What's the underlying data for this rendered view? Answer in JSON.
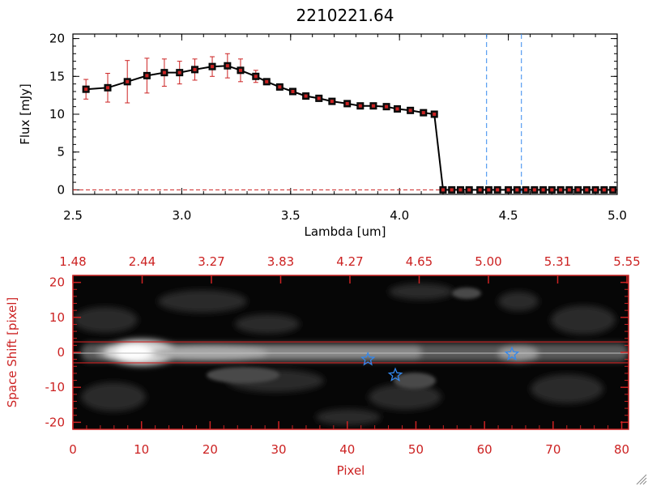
{
  "title": "2210221.64",
  "colors": {
    "axis": "#000000",
    "red": "#cc2222",
    "blue": "#3388ee",
    "background": "#ffffff"
  },
  "chart_data": [
    {
      "type": "line",
      "title": "2210221.64",
      "xlabel": "Lambda [um]",
      "ylabel": "Flux [mJy]",
      "xlim": [
        2.5,
        5.0
      ],
      "ylim": [
        -0.6,
        20.6
      ],
      "xticks": [
        "2.5",
        "3.0",
        "3.5",
        "4.0",
        "4.5",
        "5.0"
      ],
      "yticks": [
        "0",
        "5",
        "10",
        "15",
        "20"
      ],
      "marker": "square",
      "series": [
        {
          "name": "flux",
          "x": [
            2.56,
            2.66,
            2.75,
            2.84,
            2.92,
            2.99,
            3.06,
            3.14,
            3.21,
            3.27,
            3.34,
            3.39,
            3.45,
            3.51,
            3.57,
            3.63,
            3.69,
            3.76,
            3.82,
            3.88,
            3.94,
            3.99,
            4.05,
            4.11,
            4.16,
            4.2,
            4.24,
            4.28,
            4.32,
            4.37,
            4.41,
            4.45,
            4.5,
            4.54,
            4.58,
            4.62,
            4.66,
            4.7,
            4.74,
            4.78,
            4.82,
            4.86,
            4.9,
            4.94,
            4.98
          ],
          "y": [
            13.3,
            13.5,
            14.3,
            15.1,
            15.5,
            15.5,
            15.9,
            16.3,
            16.4,
            15.8,
            15.0,
            14.3,
            13.6,
            13.0,
            12.4,
            12.1,
            11.7,
            11.4,
            11.1,
            11.1,
            11.0,
            10.7,
            10.5,
            10.2,
            10.0,
            0,
            0,
            0,
            0,
            0,
            0,
            0,
            0,
            0,
            0,
            0,
            0,
            0,
            0,
            0,
            0,
            0,
            0,
            0,
            0
          ],
          "err": [
            1.3,
            1.9,
            2.8,
            2.3,
            1.8,
            1.5,
            1.4,
            1.3,
            1.6,
            1.5,
            0.8,
            0,
            0,
            0,
            0,
            0,
            0,
            0,
            0,
            0,
            0,
            0,
            0,
            0,
            0,
            0,
            0,
            0,
            0,
            0,
            0,
            0,
            0,
            0,
            0,
            0,
            0,
            0,
            0,
            0,
            0,
            0,
            0,
            0,
            0
          ]
        }
      ],
      "vlines": [
        4.4,
        4.56
      ],
      "hlines": [
        0
      ]
    },
    {
      "type": "heatmap",
      "xlabel": "Pixel",
      "ylabel": "Space Shift [pixel]",
      "xlim": [
        0,
        81
      ],
      "ylim": [
        -22,
        22
      ],
      "xticks": [
        "0",
        "10",
        "20",
        "30",
        "40",
        "50",
        "60",
        "70",
        "80"
      ],
      "yticks": [
        "-20",
        "-10",
        "0",
        "10",
        "20"
      ],
      "top_axis_ticks": [
        "1.48",
        "2.44",
        "3.27",
        "3.83",
        "4.27",
        "4.65",
        "5.00",
        "5.31",
        "5.55"
      ],
      "aperture_lines": [
        3,
        -3
      ],
      "stars": [
        {
          "x": 43,
          "y": -2
        },
        {
          "x": 47,
          "y": -6.5
        },
        {
          "x": 64,
          "y": -0.5
        }
      ]
    }
  ]
}
